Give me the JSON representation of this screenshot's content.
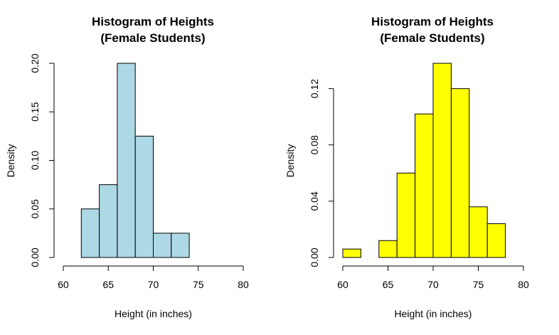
{
  "chart_data": [
    {
      "type": "bar",
      "title_lines": [
        "Histogram of Heights",
        "(Female Students)"
      ],
      "xlabel": "Height (in inches)",
      "ylabel": "Density",
      "xlim": [
        60,
        80
      ],
      "ylim": [
        0,
        0.2
      ],
      "x_ticks": [
        60,
        65,
        70,
        75,
        80
      ],
      "x_tick_labels": [
        "60",
        "65",
        "70",
        "75",
        "80"
      ],
      "y_ticks": [
        0,
        0.05,
        0.1,
        0.15,
        0.2
      ],
      "y_tick_labels": [
        "0.00",
        "0.05",
        "0.10",
        "0.15",
        "0.20"
      ],
      "fill_color": "#add8e6",
      "bins": [
        {
          "start": 62,
          "end": 64,
          "density": 0.05
        },
        {
          "start": 64,
          "end": 66,
          "density": 0.075
        },
        {
          "start": 66,
          "end": 68,
          "density": 0.2
        },
        {
          "start": 68,
          "end": 70,
          "density": 0.125
        },
        {
          "start": 70,
          "end": 72,
          "density": 0.025
        },
        {
          "start": 72,
          "end": 74,
          "density": 0.025
        }
      ]
    },
    {
      "type": "bar",
      "title_lines": [
        "Histogram of Heights",
        "(Female Students)"
      ],
      "xlabel": "Height (in inches)",
      "ylabel": "Density",
      "xlim": [
        60,
        80
      ],
      "ylim": [
        0,
        0.138
      ],
      "x_ticks": [
        60,
        65,
        70,
        75,
        80
      ],
      "x_tick_labels": [
        "60",
        "65",
        "70",
        "75",
        "80"
      ],
      "y_ticks": [
        0,
        0.04,
        0.08,
        0.12
      ],
      "y_tick_labels": [
        "0.00",
        "0.04",
        "0.08",
        "0.12"
      ],
      "fill_color": "#ffff00",
      "bins": [
        {
          "start": 60,
          "end": 62,
          "density": 0.006
        },
        {
          "start": 62,
          "end": 64,
          "density": 0.0
        },
        {
          "start": 64,
          "end": 66,
          "density": 0.012
        },
        {
          "start": 66,
          "end": 68,
          "density": 0.06
        },
        {
          "start": 68,
          "end": 70,
          "density": 0.102
        },
        {
          "start": 70,
          "end": 72,
          "density": 0.138
        },
        {
          "start": 72,
          "end": 74,
          "density": 0.12
        },
        {
          "start": 74,
          "end": 76,
          "density": 0.036
        },
        {
          "start": 76,
          "end": 78,
          "density": 0.024
        }
      ]
    }
  ]
}
